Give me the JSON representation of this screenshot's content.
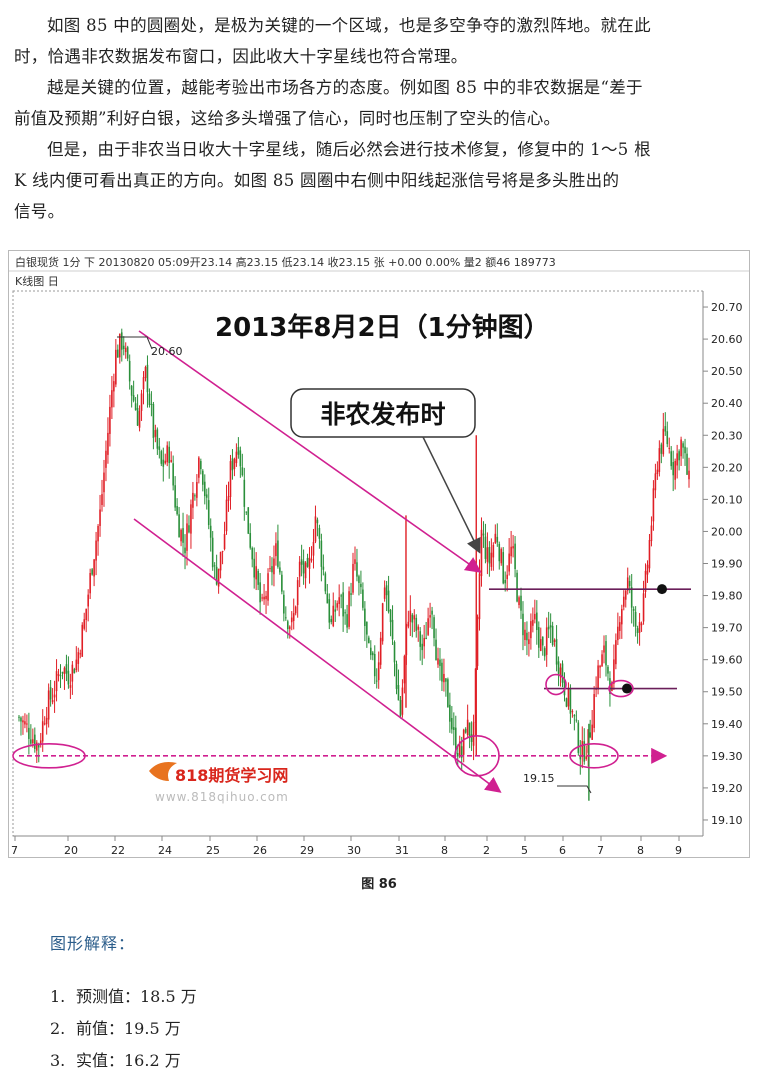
{
  "paragraphs": [
    "如图 85 中的圆圈处，是极为关键的一个区域，也是多空争夺的激烈阵地。就在此时，恰遇非农数据发布窗口，因此收大十字星线也符合常理。",
    "越是关键的位置，越能考验出市场各方的态度。例如图 85 中的非农数据是“差于前值及预期”利好白银，这给多头增强了信心，同时也压制了空头的信心。",
    "但是，由于非农当日收大十字星线，随后必然会进行技术修复，修复中的 1～5 根 K 线内便可看出真正的方向。如图 85 圆圈中右侧中阳线起涨信号将是多头胜出的信号。"
  ],
  "paragraph_lines": [
    [
      "如图 85 中的圆圈处，是极为关键的一个区域，也是多空争夺的激烈阵地。就在此",
      "时，恰遇非农数据发布窗口，因此收大十字星线也符合常理。"
    ],
    [
      "越是关键的位置，越能考验出市场各方的态度。例如图 85 中的非农数据是“差于",
      "前值及预期”利好白银，这给多头增强了信心，同时也压制了空头的信心。"
    ],
    [
      "但是，由于非农当日收大十字星线，随后必然会进行技术修复，修复中的 1～5 根",
      "K 线内便可看出真正的方向。如图 85 圆圈中右侧中阳线起涨信号将是多头胜出的",
      "信号。"
    ]
  ],
  "chart_header": {
    "info": "白银现货 1分 下 20130820 05:09开23.14 高23.15 低23.14 收23.15 张 +0.00 0.00% 量2 额46 189773",
    "panel_label": "K线图 日"
  },
  "chart_data": {
    "type": "candlestick",
    "title": "2013年8月2日（1分钟图）",
    "annotation_callout": "非农发布时",
    "high_label": "20.60",
    "low_label": "19.15",
    "ylim": [
      19.05,
      20.75
    ],
    "y_ticks": [
      "20.70",
      "20.60",
      "20.50",
      "20.40",
      "20.30",
      "20.20",
      "20.10",
      "20.00",
      "19.90",
      "19.80",
      "19.70",
      "19.60",
      "19.50",
      "19.40",
      "19.30",
      "19.20",
      "19.10"
    ],
    "x_ticks": [
      "7",
      "20",
      "22",
      "24",
      "25",
      "26",
      "29",
      "30",
      "31",
      "8",
      "2",
      "5",
      "6",
      "7",
      "8",
      "9"
    ],
    "support_level": 19.3,
    "resistance_levels": [
      19.82,
      19.51
    ],
    "close_path": [
      [
        0,
        19.42
      ],
      [
        0.5,
        19.38
      ],
      [
        1,
        19.33
      ],
      [
        1.4,
        19.45
      ],
      [
        1.8,
        19.5
      ],
      [
        2.2,
        19.58
      ],
      [
        2.6,
        19.55
      ],
      [
        3,
        19.6
      ],
      [
        3.4,
        19.72
      ],
      [
        3.8,
        19.9
      ],
      [
        4.2,
        20.05
      ],
      [
        4.6,
        20.3
      ],
      [
        5,
        20.55
      ],
      [
        5.4,
        20.6
      ],
      [
        5.8,
        20.45
      ],
      [
        6.2,
        20.35
      ],
      [
        6.6,
        20.5
      ],
      [
        7,
        20.3
      ],
      [
        7.4,
        20.2
      ],
      [
        7.8,
        20.25
      ],
      [
        8.2,
        20.05
      ],
      [
        8.6,
        19.95
      ],
      [
        9,
        20.1
      ],
      [
        9.4,
        20.25
      ],
      [
        9.8,
        20.05
      ],
      [
        10.2,
        19.85
      ],
      [
        10.6,
        19.95
      ],
      [
        11,
        20.2
      ],
      [
        11.4,
        20.28
      ],
      [
        11.8,
        20.05
      ],
      [
        12.2,
        19.9
      ],
      [
        12.6,
        19.75
      ],
      [
        13,
        19.85
      ],
      [
        13.4,
        19.95
      ],
      [
        13.8,
        19.75
      ],
      [
        14.2,
        19.7
      ],
      [
        14.6,
        19.9
      ],
      [
        15,
        19.85
      ],
      [
        15.4,
        20.05
      ],
      [
        15.8,
        19.88
      ],
      [
        16.2,
        19.7
      ],
      [
        16.6,
        19.8
      ],
      [
        17,
        19.72
      ],
      [
        17.4,
        19.9
      ],
      [
        17.8,
        19.78
      ],
      [
        18.2,
        19.6
      ],
      [
        18.6,
        19.55
      ],
      [
        19,
        19.85
      ],
      [
        19.4,
        19.65
      ],
      [
        19.8,
        19.42
      ],
      [
        20.2,
        19.75
      ],
      [
        20.6,
        19.7
      ],
      [
        21,
        19.62
      ],
      [
        21.4,
        19.8
      ],
      [
        21.8,
        19.55
      ],
      [
        22.2,
        19.5
      ],
      [
        22.6,
        19.35
      ],
      [
        23,
        19.3
      ],
      [
        23.2,
        19.4
      ],
      [
        23.6,
        19.35
      ],
      [
        24,
        20.0
      ],
      [
        24.4,
        19.9
      ],
      [
        24.8,
        20.0
      ],
      [
        25.2,
        19.85
      ],
      [
        25.6,
        19.95
      ],
      [
        26,
        19.75
      ],
      [
        26.4,
        19.65
      ],
      [
        26.8,
        19.72
      ],
      [
        27.2,
        19.62
      ],
      [
        27.6,
        19.7
      ],
      [
        28,
        19.6
      ],
      [
        28.4,
        19.5
      ],
      [
        28.8,
        19.42
      ],
      [
        29.2,
        19.3
      ],
      [
        29.6,
        19.35
      ],
      [
        30,
        19.55
      ],
      [
        30.4,
        19.62
      ],
      [
        30.8,
        19.5
      ],
      [
        31.2,
        19.75
      ],
      [
        31.6,
        19.85
      ],
      [
        32,
        19.7
      ],
      [
        32.4,
        19.75
      ],
      [
        32.8,
        20.0
      ],
      [
        33.2,
        20.25
      ],
      [
        33.6,
        20.3
      ],
      [
        34,
        20.2
      ],
      [
        34.4,
        20.28
      ],
      [
        34.8,
        20.15
      ]
    ],
    "legend_position": "none",
    "grid": false
  },
  "watermark": {
    "brand": "818期货学习网",
    "url": "www.818qihuo.com"
  },
  "figure_caption": "图 86",
  "explanation": {
    "title": "图形解释：",
    "items": [
      {
        "num": "1.",
        "label": "预测值：18.5 万"
      },
      {
        "num": "2.",
        "label": "前值：19.5 万"
      },
      {
        "num": "3.",
        "label": "实值：16.2 万"
      }
    ]
  },
  "colors": {
    "up": "#e01f26",
    "down": "#2a8f3a",
    "trend_line": "#d02090",
    "level_line": "#6a1f5a",
    "callout_arrow": "#444444"
  }
}
